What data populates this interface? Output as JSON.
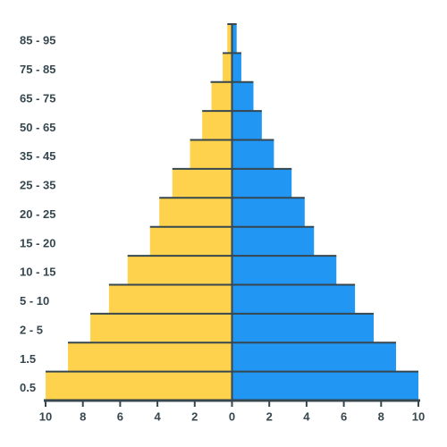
{
  "chart_data": {
    "type": "pyramid",
    "categories": [
      "85 - 95",
      "75 - 85",
      "65 - 75",
      "50 - 65",
      "35 - 45",
      "25 - 35",
      "20 - 25",
      "15 - 20",
      "10 - 15",
      "5 - 10",
      "2 - 5",
      "1.5",
      "0.5"
    ],
    "series": [
      {
        "color": "#ffd24d",
        "side": "left",
        "values": [
          0.25,
          0.5,
          1.1,
          1.6,
          2.25,
          3.2,
          3.9,
          4.4,
          5.6,
          6.6,
          7.6,
          8.8,
          10
        ]
      },
      {
        "color": "#2196f3",
        "side": "right",
        "values": [
          0.25,
          0.5,
          1.15,
          1.6,
          2.25,
          3.2,
          3.9,
          4.4,
          5.6,
          6.6,
          7.6,
          8.8,
          10
        ]
      }
    ],
    "xlim": [
      -10,
      10
    ],
    "xticks": [
      {
        "value": -10,
        "label": "10"
      },
      {
        "value": -8,
        "label": "8"
      },
      {
        "value": -6,
        "label": "6"
      },
      {
        "value": -4,
        "label": "4"
      },
      {
        "value": -2,
        "label": "2"
      },
      0,
      2,
      4,
      6,
      8,
      10
    ]
  }
}
